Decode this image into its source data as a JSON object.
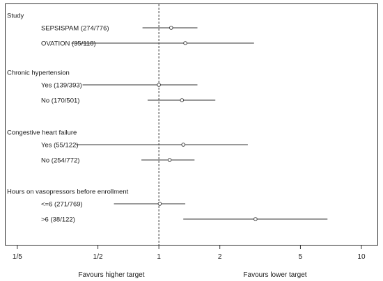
{
  "chart_data": {
    "type": "forest",
    "x_scale": "log",
    "xlim": [
      0.175,
      12
    ],
    "reference_line": 1,
    "x_ticks": [
      {
        "value": 0.2,
        "label": "1/5"
      },
      {
        "value": 0.5,
        "label": "1/2"
      },
      {
        "value": 1,
        "label": "1"
      },
      {
        "value": 2,
        "label": "2"
      },
      {
        "value": 5,
        "label": "5"
      },
      {
        "value": 10,
        "label": "10"
      }
    ],
    "footer": {
      "left": "Favours higher target",
      "right": "Favours lower target"
    },
    "groups": [
      {
        "title": "Study",
        "rows": [
          {
            "label": "SEPSISPAM (274/776)",
            "estimate": 1.15,
            "lower": 0.83,
            "upper": 1.55
          },
          {
            "label": "OVATION (35/118)",
            "estimate": 1.35,
            "lower": 0.37,
            "upper": 2.95
          }
        ]
      },
      {
        "title": "Chronic hypertension",
        "rows": [
          {
            "label": "Yes (139/393)",
            "estimate": 1.0,
            "lower": 0.42,
            "upper": 1.55
          },
          {
            "label": "No (170/501)",
            "estimate": 1.3,
            "lower": 0.88,
            "upper": 1.9
          }
        ]
      },
      {
        "title": "Congestive heart failure",
        "rows": [
          {
            "label": "Yes (55/122)",
            "estimate": 1.32,
            "lower": 0.39,
            "upper": 2.75
          },
          {
            "label": "No (254/772)",
            "estimate": 1.13,
            "lower": 0.82,
            "upper": 1.5
          }
        ]
      },
      {
        "title": "Hours on vasopressors before enrollment",
        "rows": [
          {
            "label": "<=6 (271/769)",
            "estimate": 1.01,
            "lower": 0.6,
            "upper": 1.35
          },
          {
            "label": ">6 (38/122)",
            "estimate": 3.0,
            "lower": 1.32,
            "upper": 6.8
          }
        ]
      }
    ]
  }
}
